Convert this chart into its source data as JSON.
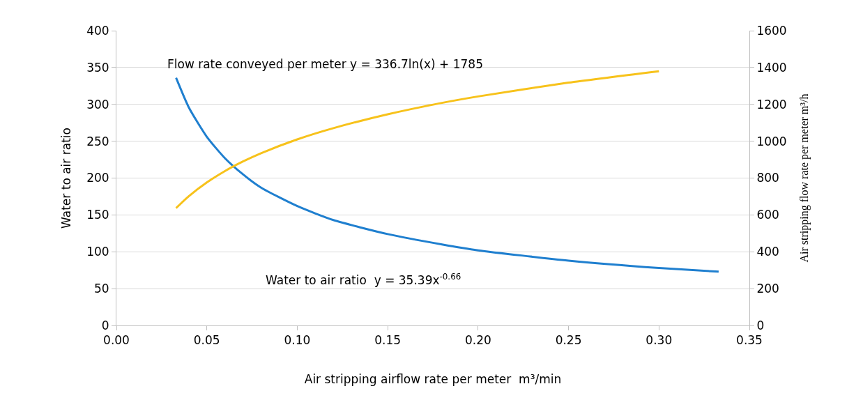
{
  "chart_data": {
    "type": "line",
    "xlabel": "Air stripping airflow rate per meter  m³/min",
    "ylabel": "Water to air ratio",
    "y2label": "Air stripping flow rate per meter m³/h",
    "xlim": [
      0,
      0.35
    ],
    "xticks": [
      {
        "value": 0,
        "label": "0.00"
      },
      {
        "value": 0.05,
        "label": "0.05"
      },
      {
        "value": 0.1,
        "label": "0.10"
      },
      {
        "value": 0.15,
        "label": "0.15"
      },
      {
        "value": 0.2,
        "label": "0.20"
      },
      {
        "value": 0.25,
        "label": "0.25"
      },
      {
        "value": 0.3,
        "label": "0.30"
      },
      {
        "value": 0.35,
        "label": "0.35"
      }
    ],
    "ylim": [
      0,
      400
    ],
    "yticks": [
      0,
      50,
      100,
      150,
      200,
      250,
      300,
      350,
      400
    ],
    "y2lim": [
      0,
      1600
    ],
    "y2ticks": [
      0,
      200,
      400,
      600,
      800,
      1000,
      1200,
      1400,
      1600
    ],
    "grid": "y",
    "marker": "none",
    "line_style": "solid",
    "series": [
      {
        "color": "#1f7fcf",
        "x": [
          0.033,
          0.04,
          0.05,
          0.06,
          0.07,
          0.08,
          0.1,
          0.12,
          0.15,
          0.18,
          0.2,
          0.25,
          0.3,
          0.333
        ],
        "values": [
          336,
          296,
          256,
          227,
          205,
          187,
          162,
          143,
          124,
          110,
          102,
          88,
          78,
          73
        ]
      },
      {
        "color": "#f7c21b",
        "axis": "y2",
        "x": [
          0.033,
          0.04,
          0.05,
          0.06,
          0.07,
          0.08,
          0.1,
          0.12,
          0.15,
          0.18,
          0.2,
          0.25,
          0.3
        ],
        "values": [
          637,
          701,
          776,
          838,
          890,
          935,
          1010,
          1071,
          1146,
          1208,
          1243,
          1318,
          1380
        ]
      }
    ],
    "annotations": [
      "Flow rate conveyed per meter y = 336.7ln(x) + 1785",
      "Water to air ratio  y = 35.39x$^{-0.66}$"
    ]
  }
}
